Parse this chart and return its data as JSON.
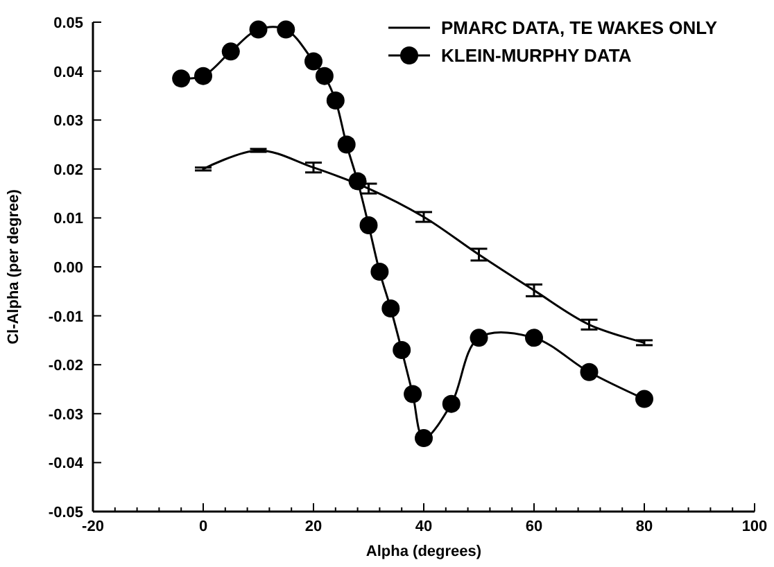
{
  "chart_data": {
    "type": "line",
    "xlabel": "Alpha (degrees)",
    "ylabel": "Cl-Alpha (per degree)",
    "xlim": [
      -20,
      100
    ],
    "ylim": [
      -0.05,
      0.05
    ],
    "xticks": [
      -20,
      {
        "value": -16,
        "label": null
      },
      {
        "value": -12,
        "label": null
      },
      {
        "value": -8,
        "label": null
      },
      {
        "value": -4,
        "label": null
      },
      0,
      {
        "value": 4,
        "label": null
      },
      {
        "value": 8,
        "label": null
      },
      {
        "value": 12,
        "label": null
      },
      {
        "value": 16,
        "label": null
      },
      20,
      {
        "value": 24,
        "label": null
      },
      {
        "value": 28,
        "label": null
      },
      {
        "value": 32,
        "label": null
      },
      {
        "value": 36,
        "label": null
      },
      40,
      {
        "value": 44,
        "label": null
      },
      {
        "value": 48,
        "label": null
      },
      {
        "value": 52,
        "label": null
      },
      {
        "value": 56,
        "label": null
      },
      60,
      {
        "value": 64,
        "label": null
      },
      {
        "value": 68,
        "label": null
      },
      {
        "value": 72,
        "label": null
      },
      {
        "value": 76,
        "label": null
      },
      80,
      {
        "value": 84,
        "label": null
      },
      {
        "value": 88,
        "label": null
      },
      {
        "value": 92,
        "label": null
      },
      {
        "value": 96,
        "label": null
      },
      100
    ],
    "yticks": [
      -0.05,
      -0.04,
      -0.03,
      -0.02,
      -0.01,
      {
        "value": 0,
        "label": "0.00"
      },
      0.01,
      0.02,
      0.03,
      0.04,
      0.05
    ],
    "legend": "top right",
    "grid": false,
    "series": [
      {
        "name": "PMARC DATA, TE WAKES ONLY",
        "color": "#000000",
        "marker": "none",
        "x": [
          0,
          10,
          20,
          30,
          40,
          50,
          60,
          70,
          80
        ],
        "values": [
          0.02,
          0.0238,
          0.0203,
          0.016,
          0.0102,
          0.0025,
          -0.0048,
          -0.0118,
          -0.0155
        ],
        "errors": [
          0.0003,
          0.0003,
          0.001,
          0.001,
          0.001,
          0.0012,
          0.0012,
          0.001,
          0.0005
        ]
      },
      {
        "name": "KLEIN-MURPHY DATA",
        "color": "#000000",
        "marker": "circle",
        "x": [
          -4,
          0,
          5,
          10,
          15,
          20,
          22,
          24,
          26,
          28,
          30,
          32,
          34,
          36,
          38,
          40,
          45,
          50,
          60,
          70,
          80
        ],
        "values": [
          0.0385,
          0.039,
          0.044,
          0.0485,
          0.0485,
          0.042,
          0.039,
          0.034,
          0.025,
          0.0175,
          0.0085,
          -0.001,
          -0.0085,
          -0.017,
          -0.026,
          -0.035,
          -0.028,
          -0.0145,
          -0.0145,
          -0.0215,
          -0.027
        ]
      }
    ]
  }
}
